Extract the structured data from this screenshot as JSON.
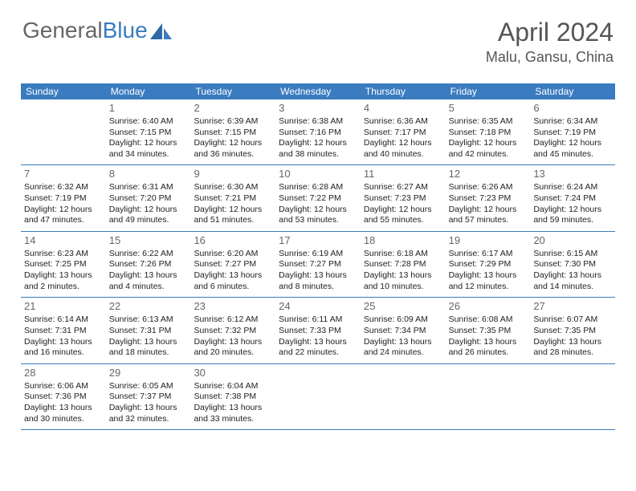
{
  "brand": {
    "part1": "General",
    "part2": "Blue"
  },
  "header": {
    "title": "April 2024",
    "location": "Malu, Gansu, China"
  },
  "colors": {
    "primary": "#3b7bbf",
    "header_text": "#ffffff",
    "body_text": "#222222",
    "day_num": "#666666",
    "title_text": "#555555",
    "background": "#ffffff"
  },
  "daynames": [
    "Sunday",
    "Monday",
    "Tuesday",
    "Wednesday",
    "Thursday",
    "Friday",
    "Saturday"
  ],
  "weeks": [
    [
      null,
      {
        "n": "1",
        "sr": "Sunrise: 6:40 AM",
        "ss": "Sunset: 7:15 PM",
        "d1": "Daylight: 12 hours",
        "d2": "and 34 minutes."
      },
      {
        "n": "2",
        "sr": "Sunrise: 6:39 AM",
        "ss": "Sunset: 7:15 PM",
        "d1": "Daylight: 12 hours",
        "d2": "and 36 minutes."
      },
      {
        "n": "3",
        "sr": "Sunrise: 6:38 AM",
        "ss": "Sunset: 7:16 PM",
        "d1": "Daylight: 12 hours",
        "d2": "and 38 minutes."
      },
      {
        "n": "4",
        "sr": "Sunrise: 6:36 AM",
        "ss": "Sunset: 7:17 PM",
        "d1": "Daylight: 12 hours",
        "d2": "and 40 minutes."
      },
      {
        "n": "5",
        "sr": "Sunrise: 6:35 AM",
        "ss": "Sunset: 7:18 PM",
        "d1": "Daylight: 12 hours",
        "d2": "and 42 minutes."
      },
      {
        "n": "6",
        "sr": "Sunrise: 6:34 AM",
        "ss": "Sunset: 7:19 PM",
        "d1": "Daylight: 12 hours",
        "d2": "and 45 minutes."
      }
    ],
    [
      {
        "n": "7",
        "sr": "Sunrise: 6:32 AM",
        "ss": "Sunset: 7:19 PM",
        "d1": "Daylight: 12 hours",
        "d2": "and 47 minutes."
      },
      {
        "n": "8",
        "sr": "Sunrise: 6:31 AM",
        "ss": "Sunset: 7:20 PM",
        "d1": "Daylight: 12 hours",
        "d2": "and 49 minutes."
      },
      {
        "n": "9",
        "sr": "Sunrise: 6:30 AM",
        "ss": "Sunset: 7:21 PM",
        "d1": "Daylight: 12 hours",
        "d2": "and 51 minutes."
      },
      {
        "n": "10",
        "sr": "Sunrise: 6:28 AM",
        "ss": "Sunset: 7:22 PM",
        "d1": "Daylight: 12 hours",
        "d2": "and 53 minutes."
      },
      {
        "n": "11",
        "sr": "Sunrise: 6:27 AM",
        "ss": "Sunset: 7:23 PM",
        "d1": "Daylight: 12 hours",
        "d2": "and 55 minutes."
      },
      {
        "n": "12",
        "sr": "Sunrise: 6:26 AM",
        "ss": "Sunset: 7:23 PM",
        "d1": "Daylight: 12 hours",
        "d2": "and 57 minutes."
      },
      {
        "n": "13",
        "sr": "Sunrise: 6:24 AM",
        "ss": "Sunset: 7:24 PM",
        "d1": "Daylight: 12 hours",
        "d2": "and 59 minutes."
      }
    ],
    [
      {
        "n": "14",
        "sr": "Sunrise: 6:23 AM",
        "ss": "Sunset: 7:25 PM",
        "d1": "Daylight: 13 hours",
        "d2": "and 2 minutes."
      },
      {
        "n": "15",
        "sr": "Sunrise: 6:22 AM",
        "ss": "Sunset: 7:26 PM",
        "d1": "Daylight: 13 hours",
        "d2": "and 4 minutes."
      },
      {
        "n": "16",
        "sr": "Sunrise: 6:20 AM",
        "ss": "Sunset: 7:27 PM",
        "d1": "Daylight: 13 hours",
        "d2": "and 6 minutes."
      },
      {
        "n": "17",
        "sr": "Sunrise: 6:19 AM",
        "ss": "Sunset: 7:27 PM",
        "d1": "Daylight: 13 hours",
        "d2": "and 8 minutes."
      },
      {
        "n": "18",
        "sr": "Sunrise: 6:18 AM",
        "ss": "Sunset: 7:28 PM",
        "d1": "Daylight: 13 hours",
        "d2": "and 10 minutes."
      },
      {
        "n": "19",
        "sr": "Sunrise: 6:17 AM",
        "ss": "Sunset: 7:29 PM",
        "d1": "Daylight: 13 hours",
        "d2": "and 12 minutes."
      },
      {
        "n": "20",
        "sr": "Sunrise: 6:15 AM",
        "ss": "Sunset: 7:30 PM",
        "d1": "Daylight: 13 hours",
        "d2": "and 14 minutes."
      }
    ],
    [
      {
        "n": "21",
        "sr": "Sunrise: 6:14 AM",
        "ss": "Sunset: 7:31 PM",
        "d1": "Daylight: 13 hours",
        "d2": "and 16 minutes."
      },
      {
        "n": "22",
        "sr": "Sunrise: 6:13 AM",
        "ss": "Sunset: 7:31 PM",
        "d1": "Daylight: 13 hours",
        "d2": "and 18 minutes."
      },
      {
        "n": "23",
        "sr": "Sunrise: 6:12 AM",
        "ss": "Sunset: 7:32 PM",
        "d1": "Daylight: 13 hours",
        "d2": "and 20 minutes."
      },
      {
        "n": "24",
        "sr": "Sunrise: 6:11 AM",
        "ss": "Sunset: 7:33 PM",
        "d1": "Daylight: 13 hours",
        "d2": "and 22 minutes."
      },
      {
        "n": "25",
        "sr": "Sunrise: 6:09 AM",
        "ss": "Sunset: 7:34 PM",
        "d1": "Daylight: 13 hours",
        "d2": "and 24 minutes."
      },
      {
        "n": "26",
        "sr": "Sunrise: 6:08 AM",
        "ss": "Sunset: 7:35 PM",
        "d1": "Daylight: 13 hours",
        "d2": "and 26 minutes."
      },
      {
        "n": "27",
        "sr": "Sunrise: 6:07 AM",
        "ss": "Sunset: 7:35 PM",
        "d1": "Daylight: 13 hours",
        "d2": "and 28 minutes."
      }
    ],
    [
      {
        "n": "28",
        "sr": "Sunrise: 6:06 AM",
        "ss": "Sunset: 7:36 PM",
        "d1": "Daylight: 13 hours",
        "d2": "and 30 minutes."
      },
      {
        "n": "29",
        "sr": "Sunrise: 6:05 AM",
        "ss": "Sunset: 7:37 PM",
        "d1": "Daylight: 13 hours",
        "d2": "and 32 minutes."
      },
      {
        "n": "30",
        "sr": "Sunrise: 6:04 AM",
        "ss": "Sunset: 7:38 PM",
        "d1": "Daylight: 13 hours",
        "d2": "and 33 minutes."
      },
      null,
      null,
      null,
      null
    ]
  ]
}
